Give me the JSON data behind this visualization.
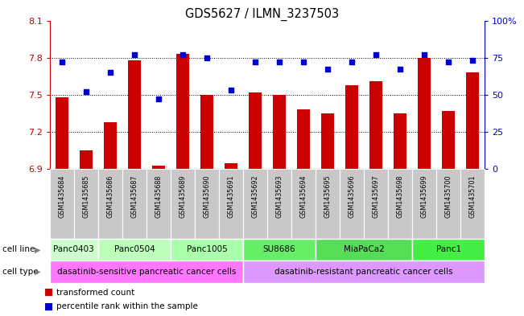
{
  "title": "GDS5627 / ILMN_3237503",
  "samples": [
    "GSM1435684",
    "GSM1435685",
    "GSM1435686",
    "GSM1435687",
    "GSM1435688",
    "GSM1435689",
    "GSM1435690",
    "GSM1435691",
    "GSM1435692",
    "GSM1435693",
    "GSM1435694",
    "GSM1435695",
    "GSM1435696",
    "GSM1435697",
    "GSM1435698",
    "GSM1435699",
    "GSM1435700",
    "GSM1435701"
  ],
  "bar_values": [
    7.48,
    7.05,
    7.28,
    7.78,
    6.93,
    7.83,
    7.5,
    6.95,
    7.52,
    7.5,
    7.38,
    7.35,
    7.58,
    7.61,
    7.35,
    7.8,
    7.37,
    7.68
  ],
  "dot_values": [
    72,
    52,
    65,
    77,
    47,
    77,
    75,
    53,
    72,
    72,
    72,
    67,
    72,
    77,
    67,
    77,
    72,
    73
  ],
  "ylim_left": [
    6.9,
    8.1
  ],
  "ylim_right": [
    0,
    100
  ],
  "yticks_left": [
    6.9,
    7.2,
    7.5,
    7.8,
    8.1
  ],
  "yticks_right": [
    0,
    25,
    50,
    75,
    100
  ],
  "bar_color": "#cc0000",
  "dot_color": "#0000cc",
  "cell_lines": [
    {
      "label": "Panc0403",
      "start": 0,
      "end": 2,
      "color": "#ccffcc"
    },
    {
      "label": "Panc0504",
      "start": 2,
      "end": 5,
      "color": "#bbffbb"
    },
    {
      "label": "Panc1005",
      "start": 5,
      "end": 8,
      "color": "#aaffaa"
    },
    {
      "label": "SU8686",
      "start": 8,
      "end": 11,
      "color": "#66ee66"
    },
    {
      "label": "MiaPaCa2",
      "start": 11,
      "end": 15,
      "color": "#55dd55"
    },
    {
      "label": "Panc1",
      "start": 15,
      "end": 18,
      "color": "#44ee44"
    }
  ],
  "cell_types": [
    {
      "label": "dasatinib-sensitive pancreatic cancer cells",
      "start": 0,
      "end": 8,
      "color": "#ff77ff"
    },
    {
      "label": "dasatinib-resistant pancreatic cancer cells",
      "start": 8,
      "end": 18,
      "color": "#dd99ff"
    }
  ],
  "sample_box_color": "#c8c8c8",
  "left_axis_color": "#cc0000",
  "right_axis_color": "#0000cc",
  "legend_items": [
    {
      "label": "transformed count",
      "color": "#cc0000"
    },
    {
      "label": "percentile rank within the sample",
      "color": "#0000cc"
    }
  ],
  "grid_yticks": [
    7.2,
    7.5,
    7.8
  ]
}
